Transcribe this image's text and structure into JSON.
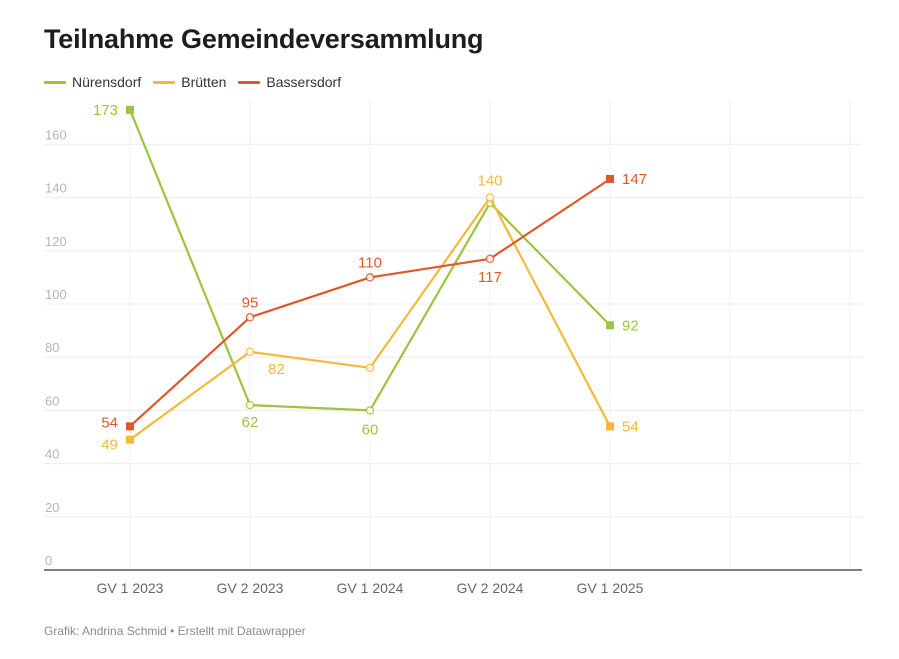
{
  "chart_data": {
    "type": "line",
    "title": "Teilnahme Gemeindeversammlung",
    "categories": [
      "GV 1 2023",
      "GV 2 2023",
      "GV 1 2024",
      "GV 2 2024",
      "GV 1 2025"
    ],
    "ylim": [
      0,
      170
    ],
    "yticks": [
      0,
      20,
      40,
      60,
      80,
      100,
      120,
      140,
      160
    ],
    "grid": true,
    "legend_position": "top-left",
    "series": [
      {
        "name": "Nürensdorf",
        "color": "#9bc53d",
        "values": [
          173,
          62,
          60,
          138,
          92
        ],
        "labels": [
          "173",
          "62",
          "60",
          "",
          "92"
        ]
      },
      {
        "name": "Brütten",
        "color": "#f6b83b",
        "values": [
          49,
          82,
          76,
          140,
          54
        ],
        "labels": [
          "49",
          "82",
          "",
          "140",
          "54"
        ]
      },
      {
        "name": "Bassersdorf",
        "color": "#e0582a",
        "values": [
          54,
          95,
          110,
          117,
          147
        ],
        "labels": [
          "54",
          "95",
          "110",
          "117",
          "147"
        ]
      }
    ]
  },
  "legend": {
    "items": [
      {
        "label": "Nürensdorf",
        "color": "#9bc53d"
      },
      {
        "label": "Brütten",
        "color": "#f6b83b"
      },
      {
        "label": "Bassersdorf",
        "color": "#e0582a"
      }
    ]
  },
  "footer": {
    "text": "Grafik: Andrina Schmid • Erstellt mit Datawrapper"
  }
}
